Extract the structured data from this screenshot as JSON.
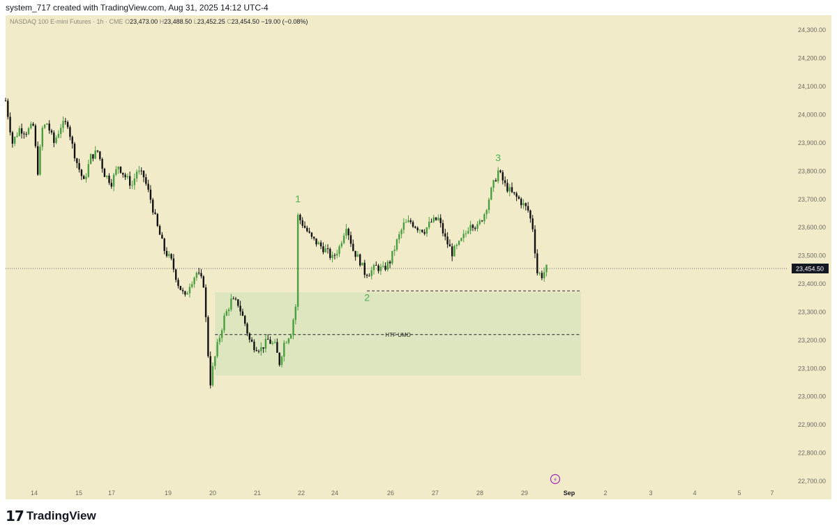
{
  "header": {
    "credit": "system_717 created with TradingView.com, Aug 31, 2025 14:12 UTC-4"
  },
  "legend": {
    "symbol": "NASDAQ 100 E-mini Futures · 1h · CME",
    "o_label": "O",
    "o_value": "23,473.00",
    "h_label": "H",
    "h_value": "23,488.50",
    "l_label": "L",
    "l_value": "23,452.25",
    "c_label": "C",
    "c_value": "23,454.50",
    "change": "−19.00 (−0.08%)"
  },
  "footer": {
    "brand": "TradingView"
  },
  "colors": {
    "background": "#f2ebca",
    "up": "#4a9e3f",
    "down": "#111111",
    "zone": "#dde6bf",
    "label": "#4caf50",
    "price_tag": "#131722"
  },
  "chart_data": {
    "type": "candlestick",
    "title": "NASDAQ 100 E-mini Futures · 1h · CME",
    "ylim": [
      22650,
      24350
    ],
    "y_ticks": [
      22700,
      22800,
      22900,
      23000,
      23100,
      23200,
      23300,
      23400,
      23500,
      23600,
      23700,
      23800,
      23900,
      24000,
      24100,
      24200,
      24300
    ],
    "y_tick_labels": [
      "22,700.00",
      "22,800.00",
      "22,900.00",
      "23,000.00",
      "23,100.00",
      "23,200.00",
      "23,300.00",
      "23,400.00",
      "23,500.00",
      "23,600.00",
      "23,700.00",
      "23,800.00",
      "23,900.00",
      "24,000.00",
      "24,100.00",
      "24,200.00",
      "24,300.00"
    ],
    "x_ticks": [
      "14",
      "15",
      "17",
      "19",
      "20",
      "21",
      "22",
      "24",
      "26",
      "27",
      "28",
      "29",
      "Sep",
      "2",
      "3",
      "4",
      "5",
      "7"
    ],
    "current_price": 23454.5,
    "current_price_label": "23,454.50",
    "path": [
      [
        0,
        24050
      ],
      [
        3,
        23900
      ],
      [
        6,
        23950
      ],
      [
        9,
        23940
      ],
      [
        12,
        23960
      ],
      [
        14,
        23800
      ],
      [
        16,
        23950
      ],
      [
        18,
        23970
      ],
      [
        21,
        23900
      ],
      [
        24,
        23960
      ],
      [
        27,
        23970
      ],
      [
        29,
        23890
      ],
      [
        31,
        23830
      ],
      [
        34,
        23760
      ],
      [
        37,
        23850
      ],
      [
        40,
        23870
      ],
      [
        43,
        23790
      ],
      [
        46,
        23760
      ],
      [
        49,
        23820
      ],
      [
        52,
        23780
      ],
      [
        55,
        23750
      ],
      [
        57,
        23800
      ],
      [
        60,
        23780
      ],
      [
        63,
        23700
      ],
      [
        66,
        23600
      ],
      [
        69,
        23520
      ],
      [
        72,
        23480
      ],
      [
        75,
        23400
      ],
      [
        78,
        23350
      ],
      [
        80,
        23400
      ],
      [
        83,
        23440
      ],
      [
        86,
        23400
      ],
      [
        88,
        23150
      ],
      [
        89,
        23050
      ],
      [
        90,
        23100
      ],
      [
        92,
        23180
      ],
      [
        95,
        23280
      ],
      [
        98,
        23340
      ],
      [
        101,
        23330
      ],
      [
        104,
        23260
      ],
      [
        106,
        23200
      ],
      [
        108,
        23180
      ],
      [
        111,
        23170
      ],
      [
        114,
        23200
      ],
      [
        117,
        23180
      ],
      [
        119,
        23120
      ],
      [
        121,
        23190
      ],
      [
        124,
        23230
      ],
      [
        126,
        23320
      ],
      [
        127,
        23640
      ],
      [
        130,
        23600
      ],
      [
        133,
        23560
      ],
      [
        136,
        23540
      ],
      [
        139,
        23520
      ],
      [
        142,
        23490
      ],
      [
        145,
        23530
      ],
      [
        148,
        23610
      ],
      [
        151,
        23520
      ],
      [
        154,
        23480
      ],
      [
        156,
        23440
      ],
      [
        158,
        23440
      ],
      [
        161,
        23460
      ],
      [
        164,
        23450
      ],
      [
        167,
        23480
      ],
      [
        170,
        23550
      ],
      [
        173,
        23610
      ],
      [
        176,
        23620
      ],
      [
        179,
        23600
      ],
      [
        182,
        23590
      ],
      [
        185,
        23620
      ],
      [
        188,
        23630
      ],
      [
        191,
        23560
      ],
      [
        194,
        23510
      ],
      [
        197,
        23540
      ],
      [
        200,
        23580
      ],
      [
        202,
        23620
      ],
      [
        205,
        23600
      ],
      [
        208,
        23650
      ],
      [
        211,
        23730
      ],
      [
        214,
        23800
      ],
      [
        217,
        23750
      ],
      [
        220,
        23720
      ],
      [
        223,
        23700
      ],
      [
        225,
        23680
      ],
      [
        227,
        23660
      ],
      [
        229,
        23600
      ],
      [
        231,
        23440
      ],
      [
        233,
        23430
      ],
      [
        235,
        23455
      ]
    ],
    "annotations": [
      {
        "label": "1",
        "x": 127,
        "y": 23690
      },
      {
        "label": "2",
        "x": 157,
        "y": 23340
      },
      {
        "label": "3",
        "x": 214,
        "y": 23835
      }
    ],
    "zone": {
      "label": "HTF UMO",
      "x_start": 91,
      "x_end": 250,
      "y_low": 23075,
      "y_high": 23370,
      "midline": 23220
    },
    "level_line": {
      "y": 23375,
      "x_start": 157,
      "x_end": 250
    }
  }
}
